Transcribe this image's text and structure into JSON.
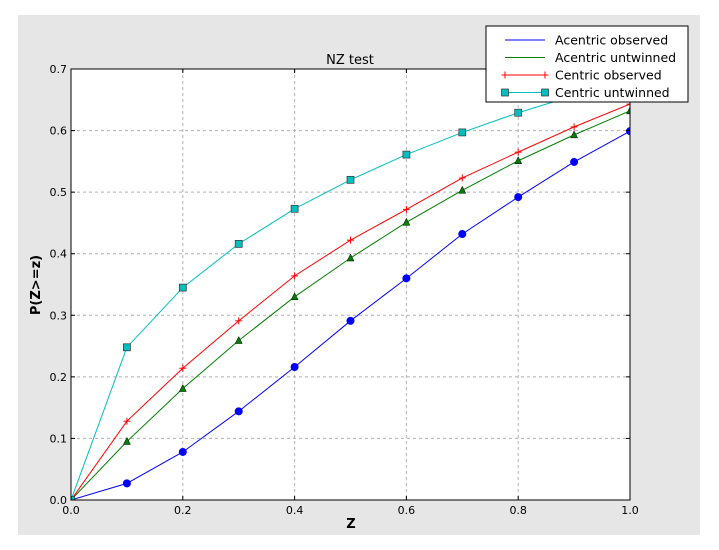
{
  "chart_data": {
    "type": "line",
    "title": "NZ test",
    "xlabel": "Z",
    "ylabel": "P(Z>=z)",
    "xlim": [
      0.0,
      1.0
    ],
    "ylim": [
      0.0,
      0.7
    ],
    "xticks": [
      "0.0",
      "0.2",
      "0.4",
      "0.6",
      "0.8",
      "1.0"
    ],
    "yticks": [
      "0.0",
      "0.1",
      "0.2",
      "0.3",
      "0.4",
      "0.5",
      "0.6",
      "0.7"
    ],
    "grid": true,
    "legend_position": "top-right",
    "x": [
      0.0,
      0.1,
      0.2,
      0.3,
      0.4,
      0.5,
      0.6,
      0.7,
      0.8,
      0.9,
      1.0
    ],
    "series": [
      {
        "name": "Acentric observed",
        "color": "#0000ff",
        "marker": "circle",
        "values": [
          0.0,
          0.027,
          0.078,
          0.144,
          0.216,
          0.291,
          0.36,
          0.432,
          0.492,
          0.549,
          0.599
        ]
      },
      {
        "name": "Acentric untwinned",
        "color": "#008000",
        "marker": "triangle",
        "values": [
          0.0,
          0.095,
          0.181,
          0.259,
          0.33,
          0.393,
          0.451,
          0.503,
          0.551,
          0.593,
          0.632
        ]
      },
      {
        "name": "Centric observed",
        "color": "#ff0000",
        "marker": "plus",
        "values": [
          0.0,
          0.128,
          0.214,
          0.291,
          0.364,
          0.422,
          0.472,
          0.523,
          0.565,
          0.606,
          0.643
        ]
      },
      {
        "name": "Centric untwinned",
        "color": "#00bfbf",
        "marker": "square",
        "values": [
          0.0,
          0.248,
          0.345,
          0.416,
          0.473,
          0.52,
          0.561,
          0.597,
          0.629,
          0.657,
          0.683
        ]
      }
    ]
  }
}
